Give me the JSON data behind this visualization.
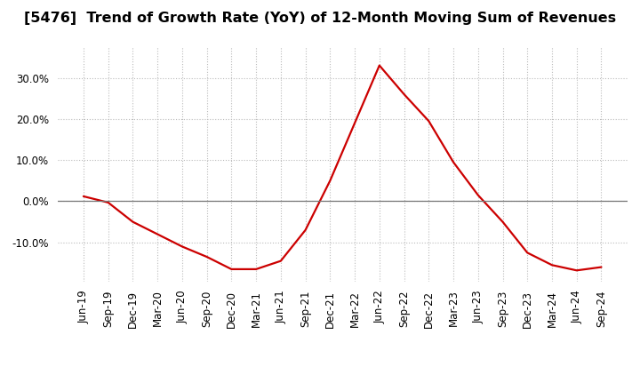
{
  "title": "[5476]  Trend of Growth Rate (YoY) of 12-Month Moving Sum of Revenues",
  "title_fontsize": 11.5,
  "line_color": "#cc0000",
  "line_width": 1.6,
  "background_color": "#ffffff",
  "grid_color": "#bbbbbb",
  "zero_line_color": "#777777",
  "xlabels": [
    "Jun-19",
    "Sep-19",
    "Dec-19",
    "Mar-20",
    "Jun-20",
    "Sep-20",
    "Dec-20",
    "Mar-21",
    "Jun-21",
    "Sep-21",
    "Dec-21",
    "Mar-22",
    "Jun-22",
    "Sep-22",
    "Dec-22",
    "Mar-23",
    "Jun-23",
    "Sep-23",
    "Dec-23",
    "Mar-24",
    "Jun-24",
    "Sep-24"
  ],
  "values": [
    1.2,
    -0.3,
    -5.0,
    -8.0,
    -11.0,
    -13.5,
    -16.5,
    -16.5,
    -14.5,
    -7.0,
    5.0,
    19.0,
    33.0,
    26.0,
    19.5,
    9.5,
    1.5,
    -5.0,
    -12.5,
    -15.5,
    -16.8,
    -16.0
  ],
  "ylim": [
    -19.5,
    37.5
  ],
  "yticks": [
    -10.0,
    0.0,
    10.0,
    20.0,
    30.0
  ],
  "tick_fontsize": 8.5
}
